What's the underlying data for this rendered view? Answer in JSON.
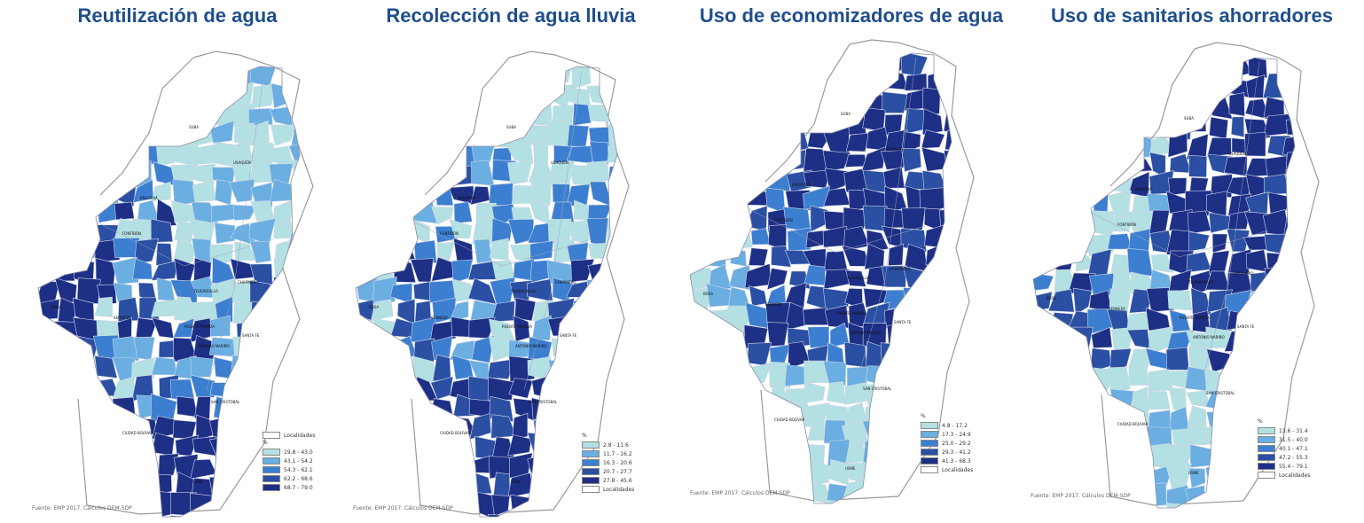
{
  "colors": {
    "class1": "#b3e0e2",
    "class2": "#6aaee2",
    "class3": "#3c7fd0",
    "class4": "#2a4fa3",
    "class5": "#1e2f86",
    "boundary": "#9a9a9a",
    "title": "#1f4e8c"
  },
  "maps": [
    {
      "title": "Reutilización de agua",
      "legend_unit": "%",
      "legend_first": "localidades",
      "classes": [
        "19.8 - 43.0",
        "43.1 - 54.2",
        "54.3 - 62.1",
        "62.2 - 68.6",
        "68.7 - 79.0"
      ],
      "localidades_label": "Localidades",
      "source": "Fuente: EMP 2017. Cálculos DEM-SDP"
    },
    {
      "title": "Recolección de agua lluvia",
      "legend_unit": "%",
      "legend_first": "classes",
      "classes": [
        "2.8 - 11.6",
        "11.7 - 16.2",
        "16.3 - 20.6",
        "20.7 - 27.7",
        "27.8 - 45.6"
      ],
      "localidades_label": "Localidades",
      "source": "Fuente: EMP 2017. Cálculos DEM-SDP"
    },
    {
      "title": "Uso de economizadores de agua",
      "legend_unit": "%",
      "legend_first": "classes",
      "classes": [
        "4.8 - 17.2",
        "17.3 - 24.9",
        "25.0 - 29.2",
        "29.3 - 41.2",
        "41.3 - 68.3"
      ],
      "localidades_label": "Localidades",
      "source": "Fuente: EMP 2017. Cálculos DEM-SDP"
    },
    {
      "title": "Uso de sanitarios ahorradores",
      "legend_unit": "%",
      "legend_first": "classes",
      "classes": [
        "13.6 - 31.4",
        "31.5 - 40.0",
        "40.1 - 47.1",
        "47.2 - 55.3",
        "55.4 - 79.1"
      ],
      "localidades_label": "Localidades",
      "source": "Fuente: EMP 2017. Cálculos DEM-SDP"
    }
  ],
  "place_labels": [
    "SUBA",
    "USAQUÉN",
    "ENGATIVÁ",
    "FONTIBÓN",
    "BOSA",
    "KENNEDY",
    "TEUSAQUILLO",
    "CHAPINERO",
    "PUENTE ARANDA",
    "ANTONIO NARIÑO",
    "SANTA FE",
    "SAN CRISTÓBAL",
    "CIUDAD BOLÍVAR",
    "USME"
  ]
}
